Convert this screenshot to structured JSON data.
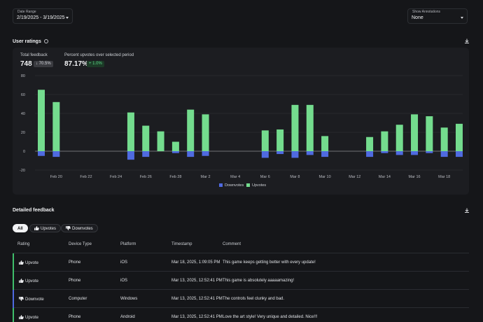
{
  "filters": {
    "date_range_label": "Date Range",
    "date_range_value": "2/19/2025 - 3/19/2025",
    "annotations_label": "Show Annotations",
    "annotations_value": "None"
  },
  "user_ratings": {
    "title": "User ratings",
    "total_label": "Total feedback",
    "total_value": "748",
    "total_change": "↓ 70.5%",
    "percent_label": "Percent upvotes over selected period",
    "percent_value": "87.17%",
    "percent_change": "+ 1.0%"
  },
  "chart_data": {
    "type": "bar",
    "stacked_around_zero": true,
    "ylim": [
      -20,
      80
    ],
    "yticks": [
      80,
      60,
      40,
      20,
      0,
      -20
    ],
    "xtick_labels": [
      "Feb 20",
      "Feb 22",
      "Feb 24",
      "Feb 26",
      "Feb 28",
      "Mar 2",
      "Mar 4",
      "Mar 6",
      "Mar 8",
      "Mar 10",
      "Mar 12",
      "Mar 14",
      "Mar 16",
      "Mar 18"
    ],
    "categories": [
      "Feb 19",
      "Feb 20",
      "Feb 21",
      "Feb 22",
      "Feb 23",
      "Feb 24",
      "Feb 25",
      "Feb 26",
      "Feb 27",
      "Feb 28",
      "Mar 1",
      "Mar 2",
      "Mar 3",
      "Mar 4",
      "Mar 5",
      "Mar 6",
      "Mar 7",
      "Mar 8",
      "Mar 9",
      "Mar 10",
      "Mar 11",
      "Mar 12",
      "Mar 13",
      "Mar 14",
      "Mar 15",
      "Mar 16",
      "Mar 17",
      "Mar 18",
      "Mar 19"
    ],
    "series": [
      {
        "name": "Downvotes",
        "color": "#4f6ae0",
        "values": [
          -5,
          -6,
          0,
          0,
          0,
          0,
          -9,
          -6,
          0,
          -2,
          -6,
          -5,
          0,
          0,
          0,
          -7,
          -3,
          -7,
          -4,
          -6,
          0,
          0,
          -6,
          -2,
          -4,
          -4,
          -2,
          -6,
          -6
        ]
      },
      {
        "name": "Upvotes",
        "color": "#74dc8e",
        "values": [
          65,
          52,
          0,
          0,
          0,
          0,
          41,
          27,
          21,
          10,
          44,
          39,
          0,
          0,
          0,
          22,
          23,
          49,
          49,
          16,
          0,
          0,
          15,
          21,
          28,
          39,
          37,
          25,
          29
        ]
      }
    ],
    "legend_position": "bottom-center",
    "grid": true
  },
  "detailed_feedback": {
    "title": "Detailed feedback",
    "filters": [
      "All",
      "Upvotes",
      "Downvotes"
    ],
    "columns": [
      "Rating",
      "Device Type",
      "Platform",
      "Timestamp",
      "Comment"
    ],
    "rows": [
      {
        "rating": "Upvote",
        "device": "Phone",
        "platform": "iOS",
        "timestamp": "Mar 18, 2025, 1:09:05 PM",
        "comment": "This game keeps getting better with every update!"
      },
      {
        "rating": "Upvote",
        "device": "Phone",
        "platform": "iOS",
        "timestamp": "Mar 13, 2025, 12:52:41 PM",
        "comment": "This game is absolutely aaaaamazing!"
      },
      {
        "rating": "Downvote",
        "device": "Computer",
        "platform": "Windows",
        "timestamp": "Mar 13, 2025, 12:52:41 PM",
        "comment": "The controls feel clunky and bad."
      },
      {
        "rating": "Upvote",
        "device": "Phone",
        "platform": "Android",
        "timestamp": "Mar 13, 2025, 12:52:41 PM",
        "comment": "Love the art style! Very unique and detailed. Nice!!!"
      }
    ]
  },
  "colors": {
    "up": "#74dc8e",
    "down": "#4f6ae0",
    "accent_up": "#3fbf6a",
    "accent_down": "#4f6ae0"
  }
}
